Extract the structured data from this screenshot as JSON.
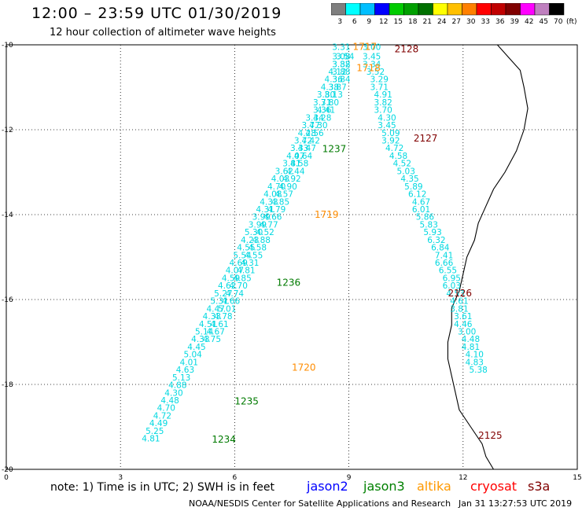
{
  "title": "12:00 – 23:59 UTC 01/30/2019",
  "subtitle": "12 hour collection of altimeter wave heights",
  "color_scale": {
    "unit": "(ft)",
    "bins": [
      {
        "label": "3",
        "color": "#7f7f7f"
      },
      {
        "label": "6",
        "color": "#00ffff"
      },
      {
        "label": "9",
        "color": "#00bfff"
      },
      {
        "label": "12",
        "color": "#0000ff"
      },
      {
        "label": "15",
        "color": "#00cc00"
      },
      {
        "label": "18",
        "color": "#00a000"
      },
      {
        "label": "21",
        "color": "#007000"
      },
      {
        "label": "24",
        "color": "#ffff00"
      },
      {
        "label": "27",
        "color": "#ffc000"
      },
      {
        "label": "30",
        "color": "#ff8000"
      },
      {
        "label": "33",
        "color": "#ff0000"
      },
      {
        "label": "36",
        "color": "#c00000"
      },
      {
        "label": "39",
        "color": "#800000"
      },
      {
        "label": "42",
        "color": "#ff00ff"
      },
      {
        "label": "45",
        "color": "#c080c0"
      },
      {
        "label": "70",
        "color": "#000000"
      }
    ]
  },
  "chart_data": {
    "type": "scatter",
    "xlim": [
      0,
      15
    ],
    "ylim": [
      -20,
      -10
    ],
    "x_ticks": [
      "0",
      "3",
      "6",
      "9",
      "12",
      "15"
    ],
    "y_ticks": [
      "-10",
      "-12",
      "-14",
      "-16",
      "-18",
      "-20"
    ],
    "colors": {
      "value": "#00d8e0",
      "jason2": "#0000ff",
      "jason3": "#007a00",
      "altika": "#ff8c00",
      "cryosat": "#c00000",
      "s3a": "#800000"
    },
    "coastline": [
      [
        12.9,
        -10
      ],
      [
        13.2,
        -10.3
      ],
      [
        13.5,
        -10.6
      ],
      [
        13.6,
        -11
      ],
      [
        13.7,
        -11.5
      ],
      [
        13.6,
        -12
      ],
      [
        13.4,
        -12.5
      ],
      [
        13.1,
        -13
      ],
      [
        12.8,
        -13.4
      ],
      [
        12.6,
        -13.8
      ],
      [
        12.4,
        -14.2
      ],
      [
        12.3,
        -14.6
      ],
      [
        12.1,
        -15
      ],
      [
        12.0,
        -15.4
      ],
      [
        11.9,
        -15.8
      ],
      [
        11.7,
        -16.2
      ],
      [
        11.7,
        -16.6
      ],
      [
        11.6,
        -17
      ],
      [
        11.6,
        -17.4
      ],
      [
        11.7,
        -17.8
      ],
      [
        11.8,
        -18.2
      ],
      [
        11.9,
        -18.6
      ],
      [
        12.2,
        -19
      ],
      [
        12.5,
        -19.4
      ],
      [
        12.6,
        -19.7
      ],
      [
        12.8,
        -20
      ]
    ],
    "tracks": [
      {
        "points": [
          [
            8.8,
            -10.05,
            "3.31"
          ],
          [
            8.8,
            -10.27,
            "3.08"
          ],
          [
            8.8,
            -10.45,
            "3.82"
          ],
          [
            8.7,
            -10.63,
            "4.12"
          ],
          [
            8.6,
            -10.81,
            "4.36"
          ],
          [
            8.5,
            -10.99,
            "4.38"
          ],
          [
            8.4,
            -11.17,
            "3.80"
          ],
          [
            8.3,
            -11.35,
            "3.71"
          ],
          [
            8.3,
            -11.53,
            "3.36"
          ],
          [
            8.1,
            -11.71,
            "3.34"
          ],
          [
            8.0,
            -11.89,
            "3.77"
          ],
          [
            7.9,
            -12.07,
            "4.28"
          ],
          [
            7.8,
            -12.25,
            "3.72"
          ],
          [
            7.7,
            -12.43,
            "3.33"
          ],
          [
            7.6,
            -12.61,
            "4.07"
          ],
          [
            7.5,
            -12.79,
            "3.81"
          ],
          [
            7.3,
            -12.97,
            "3.62"
          ],
          [
            7.2,
            -13.15,
            "4.03"
          ],
          [
            7.1,
            -13.33,
            "4.70"
          ],
          [
            7.0,
            -13.51,
            "4.08"
          ],
          [
            6.9,
            -13.69,
            "4.33"
          ],
          [
            6.8,
            -13.87,
            "4.31"
          ],
          [
            6.7,
            -14.05,
            "3.99"
          ],
          [
            6.6,
            -14.23,
            "3.99"
          ],
          [
            6.5,
            -14.41,
            "5.30"
          ],
          [
            6.4,
            -14.59,
            "4.23"
          ],
          [
            6.3,
            -14.77,
            "4.55"
          ],
          [
            6.2,
            -14.95,
            "5.54"
          ],
          [
            6.1,
            -15.13,
            "4.69"
          ],
          [
            6.0,
            -15.31,
            "4.07"
          ],
          [
            5.9,
            -15.49,
            "4.59"
          ],
          [
            5.8,
            -15.67,
            "4.62"
          ],
          [
            5.7,
            -15.85,
            "5.27"
          ],
          [
            5.6,
            -16.03,
            "5.31"
          ],
          [
            5.5,
            -16.21,
            "4.47"
          ],
          [
            5.4,
            -16.39,
            "4.33"
          ],
          [
            5.3,
            -16.57,
            "4.51"
          ],
          [
            5.2,
            -16.75,
            "5.14"
          ],
          [
            5.1,
            -16.93,
            "4.33"
          ],
          [
            5.0,
            -17.11,
            "4.45"
          ],
          [
            4.9,
            -17.29,
            "5.04"
          ],
          [
            4.8,
            -17.47,
            "4.01"
          ],
          [
            4.7,
            -17.65,
            "4.63"
          ],
          [
            4.6,
            -17.83,
            "5.13"
          ],
          [
            4.5,
            -18.01,
            "4.88"
          ],
          [
            4.4,
            -18.19,
            "4.30"
          ],
          [
            4.3,
            -18.37,
            "4.48"
          ],
          [
            4.2,
            -18.55,
            "4.70"
          ],
          [
            4.1,
            -18.73,
            "4.72"
          ],
          [
            4.0,
            -18.91,
            "4.49"
          ],
          [
            3.9,
            -19.09,
            "5.25"
          ],
          [
            3.8,
            -19.27,
            "4.81"
          ]
        ]
      },
      {
        "points": [
          [
            8.9,
            -10.27,
            "3.54"
          ],
          [
            8.8,
            -10.45,
            "3.38"
          ],
          [
            8.8,
            -10.63,
            "3.88"
          ],
          [
            8.8,
            -10.81,
            "3.84"
          ],
          [
            8.7,
            -10.99,
            "3.87"
          ],
          [
            8.6,
            -11.17,
            "3.13"
          ],
          [
            8.5,
            -11.35,
            "3.80"
          ],
          [
            8.4,
            -11.53,
            "4.41"
          ],
          [
            8.3,
            -11.71,
            "4.28"
          ],
          [
            8.2,
            -11.89,
            "4.30"
          ],
          [
            8.1,
            -12.07,
            "4.56"
          ],
          [
            8.0,
            -12.25,
            "4.42"
          ],
          [
            7.9,
            -12.43,
            "4.47"
          ],
          [
            7.8,
            -12.61,
            "4.64"
          ],
          [
            7.7,
            -12.79,
            "4.58"
          ],
          [
            7.6,
            -12.97,
            "4.44"
          ],
          [
            7.5,
            -13.15,
            "4.92"
          ],
          [
            7.4,
            -13.33,
            "4.90"
          ],
          [
            7.3,
            -13.51,
            "4.57"
          ],
          [
            7.2,
            -13.69,
            "4.85"
          ],
          [
            7.1,
            -13.87,
            "4.79"
          ],
          [
            7.0,
            -14.05,
            "4.66"
          ],
          [
            6.9,
            -14.23,
            "4.77"
          ],
          [
            6.8,
            -14.41,
            "4.52"
          ],
          [
            6.7,
            -14.59,
            "4.88"
          ],
          [
            6.6,
            -14.77,
            "4.58"
          ],
          [
            6.5,
            -14.95,
            "4.55"
          ],
          [
            6.4,
            -15.13,
            "4.31"
          ],
          [
            6.3,
            -15.31,
            "4.81"
          ],
          [
            6.2,
            -15.49,
            "4.85"
          ],
          [
            6.1,
            -15.67,
            "4.70"
          ],
          [
            6.0,
            -15.85,
            "4.74"
          ],
          [
            5.9,
            -16.03,
            "4.66"
          ],
          [
            5.8,
            -16.21,
            "5.01"
          ],
          [
            5.7,
            -16.39,
            "4.78"
          ],
          [
            5.6,
            -16.57,
            "4.61"
          ],
          [
            5.5,
            -16.75,
            "4.67"
          ],
          [
            5.4,
            -16.93,
            "4.75"
          ]
        ]
      },
      {
        "points": [
          [
            9.6,
            -10.05,
            "3.00"
          ],
          [
            9.6,
            -10.27,
            "3.45"
          ],
          [
            9.6,
            -10.45,
            "3.34"
          ],
          [
            9.7,
            -10.63,
            "3.52"
          ],
          [
            9.8,
            -10.81,
            "3.29"
          ],
          [
            9.8,
            -10.99,
            "3.71"
          ],
          [
            9.9,
            -11.17,
            "4.91"
          ],
          [
            9.9,
            -11.35,
            "3.82"
          ],
          [
            9.9,
            -11.53,
            "3.70"
          ],
          [
            10.0,
            -11.71,
            "4.30"
          ],
          [
            10.0,
            -11.89,
            "3.45"
          ],
          [
            10.1,
            -12.07,
            "5.09"
          ],
          [
            10.1,
            -12.25,
            "3.92"
          ],
          [
            10.2,
            -12.43,
            "4.72"
          ],
          [
            10.3,
            -12.61,
            "4.58"
          ],
          [
            10.4,
            -12.79,
            "4.52"
          ],
          [
            10.5,
            -12.97,
            "5.03"
          ],
          [
            10.6,
            -13.15,
            "4.35"
          ],
          [
            10.7,
            -13.33,
            "5.89"
          ],
          [
            10.8,
            -13.51,
            "6.12"
          ],
          [
            10.9,
            -13.69,
            "4.67"
          ],
          [
            10.9,
            -13.87,
            "6.01"
          ],
          [
            11.0,
            -14.05,
            "5.86"
          ],
          [
            11.1,
            -14.23,
            "5.83"
          ],
          [
            11.2,
            -14.41,
            "5.93"
          ],
          [
            11.3,
            -14.59,
            "6.32"
          ],
          [
            11.4,
            -14.77,
            "6.84"
          ],
          [
            11.5,
            -14.95,
            "7.41"
          ],
          [
            11.5,
            -15.13,
            "6.66"
          ],
          [
            11.6,
            -15.31,
            "6.55"
          ],
          [
            11.7,
            -15.49,
            "6.95"
          ],
          [
            11.7,
            -15.67,
            "6.03"
          ],
          [
            11.8,
            -15.85,
            "4.53"
          ],
          [
            11.9,
            -16.03,
            "4.61"
          ],
          [
            11.9,
            -16.21,
            "3.81"
          ],
          [
            12.0,
            -16.39,
            "3.61"
          ],
          [
            12.0,
            -16.57,
            "4.46"
          ],
          [
            12.1,
            -16.75,
            "3.00"
          ],
          [
            12.2,
            -16.93,
            "4.48"
          ],
          [
            12.2,
            -17.11,
            "4.81"
          ],
          [
            12.3,
            -17.29,
            "4.10"
          ],
          [
            12.3,
            -17.47,
            "4.83"
          ],
          [
            12.4,
            -17.65,
            "5.38"
          ]
        ]
      }
    ],
    "pass_labels": [
      {
        "text": "1717",
        "x": 9.1,
        "y": -10.05,
        "sat": "altika"
      },
      {
        "text": "1718",
        "x": 9.2,
        "y": -10.55,
        "sat": "altika"
      },
      {
        "text": "1719",
        "x": 8.1,
        "y": -14.0,
        "sat": "altika"
      },
      {
        "text": "1720",
        "x": 7.5,
        "y": -17.6,
        "sat": "altika"
      },
      {
        "text": "2128",
        "x": 10.2,
        "y": -10.1,
        "sat": "s3a"
      },
      {
        "text": "2127",
        "x": 10.7,
        "y": -12.2,
        "sat": "s3a"
      },
      {
        "text": "2126",
        "x": 11.6,
        "y": -15.85,
        "sat": "s3a"
      },
      {
        "text": "2125",
        "x": 12.4,
        "y": -19.2,
        "sat": "s3a"
      },
      {
        "text": "1237",
        "x": 8.3,
        "y": -12.45,
        "sat": "jason3"
      },
      {
        "text": "1236",
        "x": 7.1,
        "y": -15.6,
        "sat": "jason3"
      },
      {
        "text": "1235",
        "x": 6.0,
        "y": -18.4,
        "sat": "jason3"
      },
      {
        "text": "1234",
        "x": 5.4,
        "y": -19.3,
        "sat": "jason3"
      }
    ]
  },
  "footer": {
    "note": "note: 1) Time is in UTC; 2) SWH is in feet",
    "satellites": [
      {
        "name": "jason2",
        "color": "#0000ff"
      },
      {
        "name": "jason3",
        "color": "#008000"
      },
      {
        "name": "altika",
        "color": "#ff9900"
      },
      {
        "name": "cryosat",
        "color": "#ff0000"
      },
      {
        "name": "s3a",
        "color": "#800000"
      }
    ],
    "credit": "NOAA/NESDIS Center for Satellite Applications and Research",
    "timestamp": "Jan 31 13:27:53 UTC 2019"
  }
}
